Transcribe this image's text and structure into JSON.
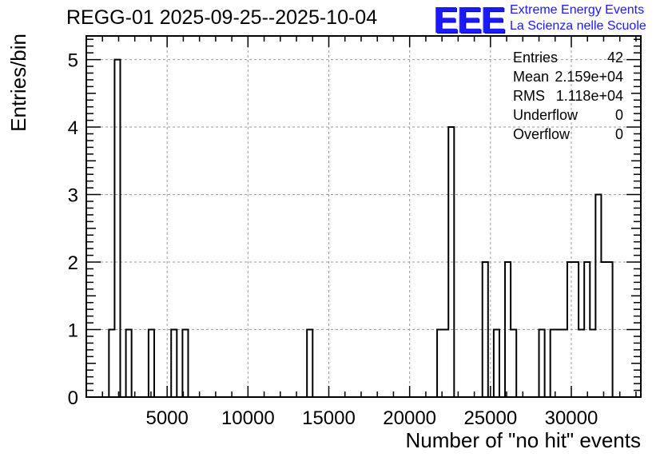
{
  "chart_data": {
    "type": "histogram",
    "title": "REGG-01 2025-09-25--2025-10-04",
    "xlabel": "Number of \"no hit\" events",
    "ylabel": "Entries/bin",
    "xlim": [
      0,
      34300
    ],
    "ylim": [
      0,
      5.35
    ],
    "x_ticks": [
      5000,
      10000,
      15000,
      20000,
      25000,
      30000
    ],
    "x_tick_labels": [
      "5000",
      "10000",
      "15000",
      "20000",
      "25000",
      "30000"
    ],
    "y_ticks": [
      0,
      1,
      2,
      3,
      4,
      5
    ],
    "y_tick_labels": [
      "0",
      "1",
      "2",
      "3",
      "4",
      "5"
    ],
    "grid": true,
    "bin_width": 350,
    "bins": [
      {
        "x": 1400,
        "count": 1
      },
      {
        "x": 1750,
        "count": 5
      },
      {
        "x": 2450,
        "count": 1
      },
      {
        "x": 3850,
        "count": 1
      },
      {
        "x": 5250,
        "count": 1
      },
      {
        "x": 5950,
        "count": 1
      },
      {
        "x": 13650,
        "count": 1
      },
      {
        "x": 21700,
        "count": 1
      },
      {
        "x": 22050,
        "count": 1
      },
      {
        "x": 22400,
        "count": 4
      },
      {
        "x": 24500,
        "count": 2
      },
      {
        "x": 25200,
        "count": 1
      },
      {
        "x": 25900,
        "count": 2
      },
      {
        "x": 26250,
        "count": 1
      },
      {
        "x": 28000,
        "count": 1
      },
      {
        "x": 28700,
        "count": 1
      },
      {
        "x": 29050,
        "count": 1
      },
      {
        "x": 29400,
        "count": 1
      },
      {
        "x": 29750,
        "count": 2
      },
      {
        "x": 30100,
        "count": 2
      },
      {
        "x": 30450,
        "count": 1
      },
      {
        "x": 30800,
        "count": 2
      },
      {
        "x": 31150,
        "count": 1
      },
      {
        "x": 31500,
        "count": 3
      },
      {
        "x": 31850,
        "count": 2
      },
      {
        "x": 32200,
        "count": 2
      }
    ],
    "stats": {
      "entries_label": "Entries",
      "entries": "42",
      "mean_label": "Mean",
      "mean": "2.159e+04",
      "rms_label": "RMS",
      "rms": "1.118e+04",
      "underflow_label": "Underflow",
      "underflow": "0",
      "overflow_label": "Overflow",
      "overflow": "0"
    }
  },
  "logo": {
    "mark": "EEE",
    "line1": "Extreme Energy Events",
    "line2": "La Scienza nelle Scuole",
    "color": "#1a1aff"
  }
}
